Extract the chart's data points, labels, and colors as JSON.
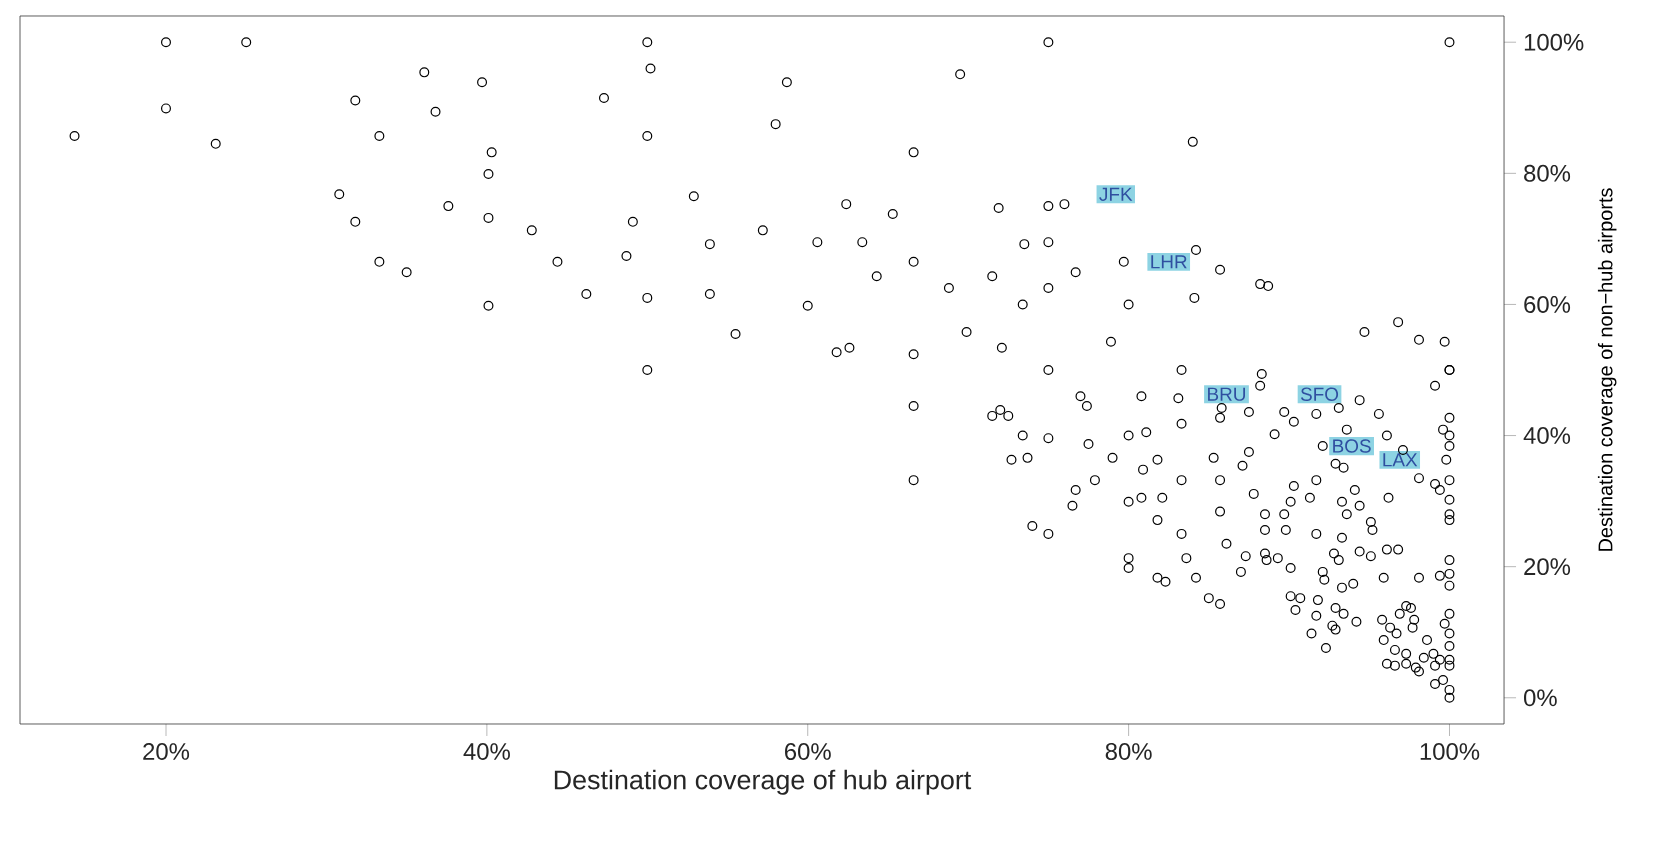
{
  "chart_data": {
    "type": "scatter",
    "xlabel": "Destination coverage of hub airport",
    "ylabel": "Destination coverage of non−hub airports",
    "xlim": [
      10.9,
      103.4
    ],
    "ylim": [
      -4,
      104
    ],
    "xticks": [
      {
        "value": 20,
        "label": "20%"
      },
      {
        "value": 40,
        "label": "40%"
      },
      {
        "value": 60,
        "label": "60%"
      },
      {
        "value": 80,
        "label": "80%"
      },
      {
        "value": 100,
        "label": "100%"
      }
    ],
    "yticks": [
      {
        "value": 0,
        "label": "0%"
      },
      {
        "value": 20,
        "label": "20%"
      },
      {
        "value": 40,
        "label": "40%"
      },
      {
        "value": 60,
        "label": "60%"
      },
      {
        "value": 80,
        "label": "80%"
      },
      {
        "value": 100,
        "label": "100%"
      }
    ],
    "color": "#000000",
    "marker": "circle",
    "x": [
      14.3,
      20,
      25,
      20,
      23.1,
      36.1,
      39.7,
      31.8,
      36.8,
      33.3,
      40.3,
      40.1,
      30.8,
      31.8,
      37.6,
      40.1,
      42.8,
      44.4,
      33.3,
      35.0,
      40.1,
      46.2,
      48.7,
      49.1,
      50,
      50,
      50,
      50,
      50.2,
      47.3,
      52.9,
      53.9,
      53.9,
      55.5,
      57.2,
      60.6,
      60,
      61.8,
      58.7,
      58.0,
      75.0,
      69.5,
      84.0,
      66.6,
      62.4,
      65.3,
      71.9,
      75.0,
      76.0,
      63.4,
      66.6,
      64.3,
      68.8,
      71.5,
      73.5,
      75.0,
      75.0,
      76.7,
      79.7,
      84.2,
      85.7,
      80.0,
      84.1,
      88.2,
      88.7,
      73.4,
      62.6,
      66.6,
      69.9,
      72.1,
      78.9,
      75,
      83.3,
      88.3,
      88.2,
      94.7,
      96.8,
      98.1,
      99.7,
      100,
      99.1,
      100,
      66.6,
      66.6,
      71.5,
      72.0,
      72.5,
      77.0,
      77.4,
      73.4,
      75,
      72.7,
      73.7,
      77.5,
      79.0,
      80,
      81.1,
      80.8,
      83.1,
      83.3,
      80.9,
      81.8,
      77.9,
      76.7,
      76.5,
      80,
      80.8,
      82.1,
      83.3,
      81.8,
      74.0,
      75,
      83.3,
      83.6,
      80,
      80,
      81.8,
      82.3,
      84.2,
      85.8,
      85.7,
      87.5,
      89.1,
      89.7,
      90.3,
      91.7,
      93.1,
      94.4,
      95.6,
      93.6,
      96.1,
      92.1,
      92.9,
      93.4,
      97.1,
      100,
      100,
      99.6,
      100,
      100,
      99.8,
      100,
      100,
      100,
      100,
      99.1,
      99.4,
      98.1,
      96.2,
      85.3,
      87.1,
      87.5,
      85.7,
      87.8,
      90.3,
      90.1,
      91.3,
      91.7,
      89.7,
      88.5,
      85.7,
      93.3,
      94.1,
      94.4,
      93.6,
      95.1,
      95.2,
      86.1,
      88.5,
      89.8,
      91.7,
      93.3,
      87.3,
      88.5,
      88.6,
      89.3,
      90.1,
      87.0,
      92.1,
      92.8,
      93.1,
      94.4,
      95.1,
      96.1,
      96.8,
      95.9,
      94.0,
      92.2,
      93.3,
      98.1,
      99.4,
      100,
      100,
      100,
      85.0,
      85.7,
      90.1,
      90.7,
      90.4,
      91.8,
      91.7,
      92.9,
      93.4,
      91.4,
      92.3,
      92.7,
      92.9,
      94.2,
      95.8,
      96.3,
      96.7,
      96.9,
      97.6,
      97.3,
      97.8,
      97.7,
      98.6,
      99.0,
      99.4,
      98.4,
      97.9,
      97.3,
      96.6,
      95.9,
      96.6,
      97.3,
      99.1,
      100,
      100,
      100,
      100,
      99.7,
      100,
      100,
      99.6,
      99.1,
      100,
      96.1,
      98.1
    ],
    "values": [
      85.7,
      100,
      100,
      89.9,
      84.5,
      95.4,
      93.9,
      91.1,
      89.4,
      85.7,
      83.2,
      79.9,
      76.8,
      72.6,
      75.0,
      73.2,
      71.3,
      66.5,
      66.5,
      64.9,
      59.8,
      61.6,
      67.4,
      72.6,
      61.0,
      50,
      85.7,
      100,
      96.0,
      91.5,
      76.5,
      69.2,
      61.6,
      55.5,
      71.3,
      69.5,
      59.8,
      52.7,
      93.9,
      87.5,
      100,
      95.1,
      84.8,
      83.2,
      75.3,
      73.8,
      74.7,
      75.0,
      75.3,
      69.5,
      66.5,
      64.3,
      62.5,
      64.3,
      69.2,
      69.5,
      62.5,
      64.9,
      66.5,
      68.3,
      65.3,
      60.0,
      61.0,
      63.1,
      62.8,
      60.0,
      53.4,
      52.4,
      55.8,
      53.4,
      54.3,
      50,
      50,
      49.4,
      47.6,
      55.8,
      57.3,
      54.6,
      54.3,
      50,
      47.6,
      100,
      44.5,
      33.2,
      43.0,
      43.9,
      43.0,
      46.0,
      44.5,
      40.0,
      39.6,
      36.3,
      36.6,
      38.7,
      36.6,
      40,
      40.5,
      46.0,
      45.7,
      41.8,
      34.8,
      36.3,
      33.2,
      31.7,
      29.3,
      29.9,
      30.5,
      30.5,
      33.2,
      27.1,
      26.2,
      25.0,
      25.0,
      21.3,
      21.3,
      19.8,
      18.3,
      17.7,
      18.3,
      44.2,
      42.7,
      43.6,
      40.2,
      43.6,
      42.1,
      43.3,
      44.2,
      45.4,
      43.3,
      40.9,
      40.0,
      38.4,
      35.7,
      35.1,
      37.8,
      50,
      42.7,
      40.9,
      40,
      38.4,
      36.3,
      33.2,
      30.2,
      28.0,
      27.1,
      32.6,
      31.7,
      33.5,
      30.5,
      36.6,
      35.4,
      37.5,
      33.2,
      31.1,
      32.3,
      29.9,
      30.5,
      33.2,
      28.0,
      28.0,
      28.4,
      29.9,
      31.7,
      29.3,
      28.0,
      26.8,
      25.6,
      23.5,
      25.6,
      25.6,
      25.0,
      24.4,
      21.6,
      22.0,
      21.0,
      21.3,
      19.8,
      19.2,
      19.2,
      22.0,
      21.0,
      22.3,
      21.6,
      22.6,
      22.6,
      18.3,
      17.4,
      18.0,
      16.8,
      18.3,
      18.6,
      21.0,
      18.9,
      17.1,
      15.2,
      14.3,
      15.5,
      15.2,
      13.4,
      14.9,
      12.5,
      13.7,
      12.8,
      9.8,
      7.6,
      11.0,
      10.4,
      11.6,
      11.9,
      10.7,
      9.8,
      12.8,
      13.7,
      14.0,
      11.9,
      10.7,
      8.8,
      6.7,
      5.8,
      6.1,
      4.6,
      6.7,
      7.3,
      8.8,
      4.9,
      5.2,
      4.9,
      12.8,
      9.8,
      7.9,
      5.8,
      11.3,
      0,
      1.2,
      2.7,
      2.1,
      4.9,
      5.2,
      4.0
    ],
    "annotations": [
      {
        "text": "JFK",
        "x": 79.2,
        "y": 76.8
      },
      {
        "text": "LHR",
        "x": 82.5,
        "y": 66.5
      },
      {
        "text": "BRU",
        "x": 86.1,
        "y": 46.3
      },
      {
        "text": "SFO",
        "x": 91.9,
        "y": 46.3
      },
      {
        "text": "BOS",
        "x": 93.9,
        "y": 38.4
      },
      {
        "text": "LAX",
        "x": 96.9,
        "y": 36.3
      }
    ]
  }
}
